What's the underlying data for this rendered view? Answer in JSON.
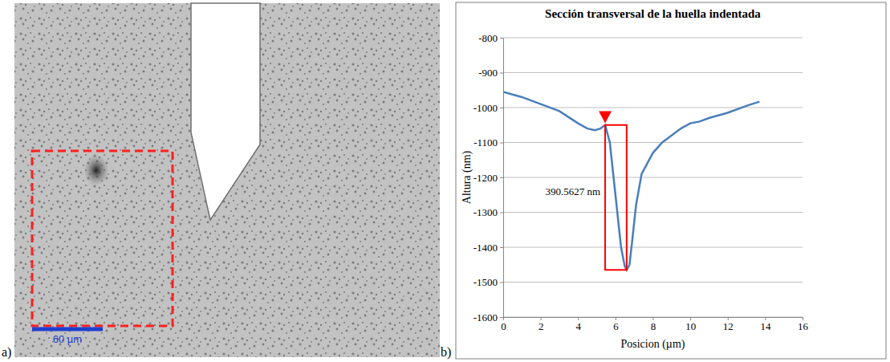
{
  "figure": {
    "panels": [
      {
        "label": "a)",
        "scale_bar": "60 µm"
      },
      {
        "label": "b)"
      }
    ]
  },
  "chart_data": {
    "type": "line",
    "title": "Sección transversal de la huella indentada",
    "x_label": "Posicion (µm)",
    "y_label": "Altura (nm)",
    "x": [
      0,
      1,
      2,
      3,
      4,
      4.5,
      4.9,
      5.2,
      5.45,
      5.7,
      5.9,
      6.1,
      6.3,
      6.5,
      6.6,
      6.75,
      6.9,
      7.1,
      7.4,
      7.7,
      8,
      8.5,
      9,
      9.5,
      10,
      10.5,
      11,
      12,
      13,
      13.7
    ],
    "series": [
      {
        "name": "Altura",
        "color": "#4a7ebb",
        "values": [
          -955,
          -970,
          -990,
          -1010,
          -1045,
          -1060,
          -1065,
          -1060,
          -1050,
          -1100,
          -1200,
          -1300,
          -1400,
          -1455,
          -1465,
          -1450,
          -1380,
          -1280,
          -1190,
          -1160,
          -1130,
          -1100,
          -1080,
          -1060,
          -1045,
          -1040,
          -1030,
          -1015,
          -995,
          -983
        ]
      }
    ],
    "xlim": [
      0,
      16
    ],
    "xticks": [
      0,
      2,
      4,
      6,
      8,
      10,
      12,
      14,
      16
    ],
    "ylim": [
      -1600,
      -800
    ],
    "yticks": [
      -1600,
      -1500,
      -1400,
      -1300,
      -1200,
      -1100,
      -1000,
      -900,
      -800
    ],
    "grid": true,
    "annotations": [
      {
        "text": "390.5627 nm",
        "x": 5.2,
        "y": -1250
      }
    ],
    "marker_point": {
      "x": 5.45,
      "y": -1045,
      "color": "#ff0000"
    },
    "box": {
      "x": [
        5.45,
        6.6
      ],
      "y": [
        -1465,
        -1050
      ],
      "color": "#ff0000"
    }
  }
}
